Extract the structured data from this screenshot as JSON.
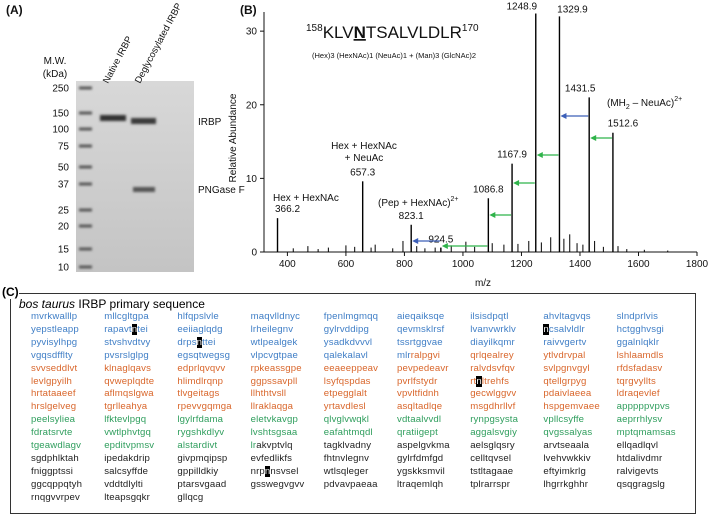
{
  "panel_a": {
    "label": "(A)",
    "mw_title": [
      "M.W.",
      "(kDa)"
    ],
    "markers": [
      250,
      150,
      100,
      75,
      50,
      37,
      25,
      20,
      15,
      10
    ],
    "lanes": [
      "Native IRBP",
      "Deglycosylated IRBP"
    ],
    "bands": [
      "IRBP",
      "PNGase F"
    ]
  },
  "chart_data": {
    "type": "stem",
    "label": "(B)",
    "peptide": {
      "start": 158,
      "pre": "KLV",
      "site": "N",
      "post": "TSALVLDLR",
      "end": 170
    },
    "glycan": "(Hex)3 (HexNAc)1 (NeuAc)1 + (Man)3 (GlcNAc)2",
    "y_label": "Relative Abundance",
    "x_label": "m/z",
    "xlim": [
      320,
      1800
    ],
    "xticks": [
      400,
      600,
      800,
      1000,
      1200,
      1400,
      1600,
      1800
    ],
    "ylim": [
      0,
      32.6
    ],
    "yticks": [
      0,
      10,
      20,
      30
    ],
    "color": "#000000",
    "peaks": {
      "x": [
        366.2,
        657.3,
        823.1,
        924.5,
        1086.8,
        1167.9,
        1248.9,
        1329.9,
        1431.5,
        1512.6
      ],
      "values": [
        4.6,
        9.6,
        3.7,
        0.6,
        7.3,
        12,
        32.4,
        32,
        21,
        16.2
      ]
    },
    "minor_peaks": {
      "x": [
        420,
        470,
        505,
        540,
        600,
        630,
        686,
        700,
        760,
        795,
        842,
        870,
        905,
        960,
        1010,
        1040,
        1100,
        1140,
        1188,
        1225,
        1268,
        1300,
        1345,
        1365,
        1390,
        1410,
        1450,
        1480,
        1530,
        1560,
        1620,
        1700
      ],
      "values": [
        0.5,
        0.8,
        0.4,
        0.6,
        0.9,
        0.7,
        0.6,
        1.0,
        0.5,
        1.5,
        0.8,
        0.5,
        0.6,
        0.9,
        1.4,
        0.7,
        1.2,
        1.0,
        1.1,
        1.5,
        1.3,
        2.0,
        1.8,
        2.4,
        1.2,
        1.0,
        1.5,
        0.7,
        0.8,
        0.4,
        0.3,
        0.2
      ]
    },
    "annotations": [
      {
        "lines": [
          "Hex + HexNAc"
        ]
      },
      {
        "lines": [
          "Hex + HexNAc",
          "+ NeuAc"
        ]
      },
      {
        "text": "(Pep + HexNAc)",
        "sup": "2+"
      },
      {
        "text": "(MH",
        "sub": "2",
        "text2": " – NeuAc)",
        "sup": "2+"
      }
    ],
    "arrow_colors": {
      "loss": "#2fb34a",
      "charge": "#3c5fb8"
    }
  },
  "panel_c": {
    "label": "(C)",
    "species": "bos taurus",
    "title": "IRBP primary sequence",
    "rows": [
      [
        "mvrkwalllp",
        "mllcgltgpa",
        "hlfqpslvle",
        "maqvlldnyc",
        "fpenlmgmqq",
        "aieqaiksqe",
        "ilsisdpqtl",
        "ahvltagvqs",
        "slndprlvis"
      ],
      [
        "yepstleapp",
        "rapavtntei",
        "eeiiaglqdg",
        "lrheilegnv",
        "gylrvddipg",
        "qevmsklrsf",
        "lvanvwrklv",
        "ncsalvldlr",
        "hctgghvsgi"
      ],
      [
        "pyvisylhpg",
        "stvshvdtvy",
        "drpsnttei",
        "wtlpealgek",
        "ysadkdvvvl",
        "tssrtggvae",
        "diayilkqmr",
        "raivvgertv",
        "ggalnlqklr"
      ],
      [
        "vgqsdfflty",
        "pvsrslglpg",
        "egsqtwegsg",
        "vlpcvgtpae",
        "qalekalavl",
        "mlrralpgvi",
        "qrlqealrey",
        "ytlvdrvpal",
        "lshlaamdls"
      ],
      [
        "svvseddlvt",
        "klnaglqavs",
        "edprlqvqvv",
        "rpkeassgpe",
        "eeaeeppeav",
        "pevpedeavr",
        "ralvdsvfqv",
        "svlpgnvgyl",
        "rfdsfadasv"
      ],
      [
        "levlgpyilh",
        "qvweplqdte",
        "hlimdlrqnp",
        "ggpssavpll",
        "lsyfqspdas",
        "pvrlfstydr",
        "rtnltrehfs",
        "qtellgrpyg",
        "tqrgvyllts"
      ],
      [
        "hrtataaeef",
        "aflmqslgwa",
        "tlvgeitags",
        "llhthtvsll",
        "etpegglalt",
        "vpvltfidnh",
        "gecwlggvv",
        "pdaivlaeea",
        "ldraqevlef"
      ],
      [
        "hrslgelveg",
        "tgrlleahya",
        "rpevvgqmga",
        "llraklaqga",
        "yrtavdlesl",
        "asqltadlqe",
        "msgdhrllvf",
        "hspgemvaee",
        "apppppvpvs"
      ],
      [
        "peelsyliea",
        "lfktevlpgq",
        "lgylrfdama",
        "eletvkavgp",
        "qlvglvwqkl",
        "vdtaalvvdl",
        "rynpgsysta",
        "vpllcsyffe",
        "aeprrhlysv"
      ],
      [
        "fdratsrvte",
        "vwtlphvtgq",
        "rygshkdlyv",
        "lvshtsgsaa",
        "eafahtmqdl",
        "qratiigept",
        "aggalsvgiy",
        "qvgssalyas",
        "mptqmamsas"
      ],
      [
        "tgeawdlagv",
        "epditvpmsv",
        "alstardivt",
        "lrakvptvlq",
        "tagklvadny",
        "aspelgvkma",
        "aelsglqsry",
        "arvtseaala",
        "ellqadlqvl"
      ],
      [
        "sgdphlktah",
        "ipedakdrip",
        "givpmqipsp",
        "evfedlikfs",
        "fhtnvlegnv",
        "gylrfdmfgd",
        "celltqvsel",
        "lvehvwkkiv",
        "htdalivdmr"
      ],
      [
        "fniggptssi",
        "salcsyffde",
        "gppilldkiy",
        "nrpnnsvsel",
        "wtlsqleger",
        "ygskksmvil",
        "tstltagaae",
        "eftyimkrlg",
        "ralvigevts"
      ],
      [
        "ggcqppqtyh",
        "vddtdlylti",
        "ptarsvgaad",
        "gsswegvgvv",
        "pdvavpaeaa",
        "ltraqemlqh",
        "tplrarrspr",
        "lhgrrkghhr",
        "qsqgragslg"
      ],
      [
        "rnqgvvrpev",
        "lteapsgqkr",
        "gllqcg"
      ]
    ],
    "color_runs": [
      {
        "color": "#3f7ec6",
        "until": [
          3,
          5,
          3
        ]
      },
      {
        "color": "#d9662b",
        "until": [
          7,
          8,
          0
        ]
      },
      {
        "color": "#2f9e5d",
        "until": [
          10,
          3,
          2
        ]
      },
      {
        "color": "#222222",
        "until": null
      }
    ],
    "highlights": [
      [
        1,
        1,
        6
      ],
      [
        1,
        7,
        0
      ],
      [
        2,
        2,
        4
      ],
      [
        5,
        6,
        2
      ],
      [
        12,
        3,
        3
      ]
    ]
  }
}
